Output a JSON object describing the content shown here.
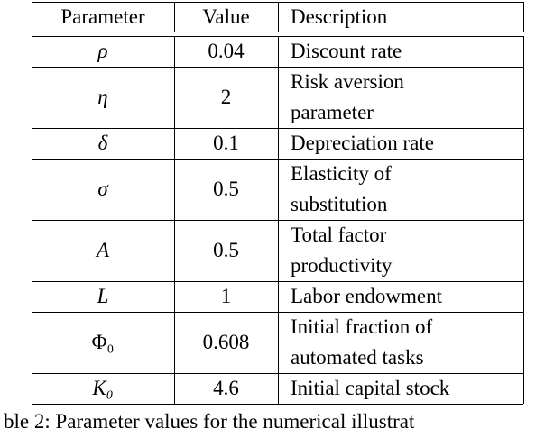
{
  "table": {
    "header": [
      "Parameter",
      "Value",
      "Description"
    ],
    "rows": [
      {
        "symbol": "ρ",
        "value": "0.04",
        "description": [
          "Discount rate"
        ]
      },
      {
        "symbol": "η",
        "value": "2",
        "description": [
          "Risk aversion",
          "parameter"
        ]
      },
      {
        "symbol": "δ",
        "value": "0.1",
        "description": [
          "Depreciation rate"
        ]
      },
      {
        "symbol": "σ",
        "value": "0.5",
        "description": [
          "Elasticity of",
          "substitution"
        ]
      },
      {
        "symbol": "A",
        "value": "0.5",
        "description": [
          "Total factor",
          "productivity"
        ]
      },
      {
        "symbol": "L",
        "value": "1",
        "description": [
          "Labor endowment"
        ]
      },
      {
        "symbol": "Φ₀",
        "value": "0.608",
        "description": [
          "Initial fraction of",
          "automated tasks"
        ]
      },
      {
        "symbol": "K₀",
        "value": "4.6",
        "description": [
          "Initial capital stock"
        ]
      }
    ],
    "caption": "ble 2: Parameter values for the numerical illustrat"
  }
}
